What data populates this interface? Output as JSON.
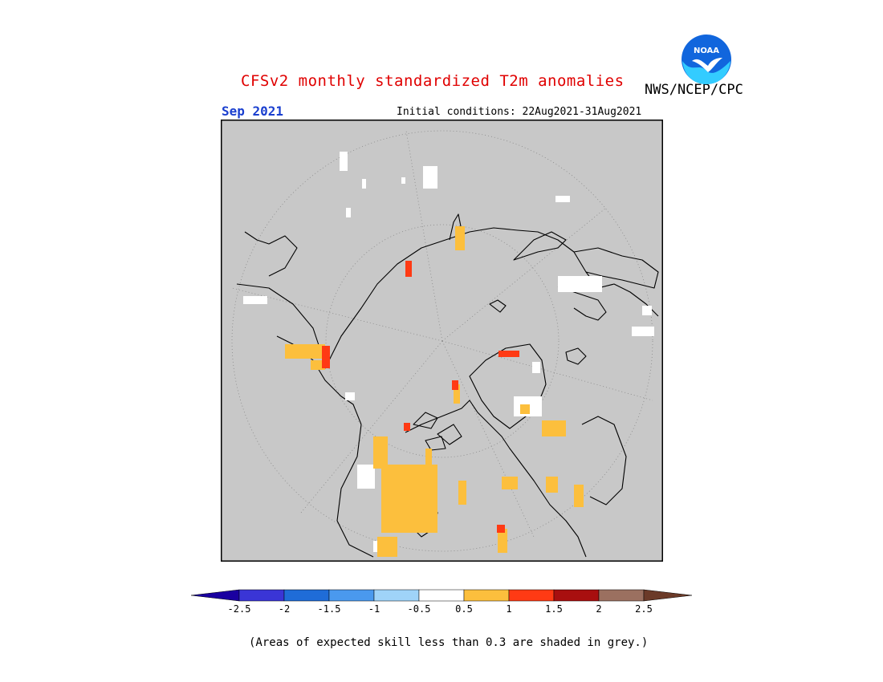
{
  "header": {
    "title": "CFSv2 monthly standardized T2m anomalies",
    "agency": "NWS/NCEP/CPC",
    "period": "Sep 2021",
    "initial_conditions": "Initial conditions: 22Aug2021-31Aug2021"
  },
  "logo": {
    "text": "NOAA",
    "icon": "noaa-logo",
    "colors": {
      "sky": "#1166dd",
      "wave": "#33ccff",
      "gull": "#ffffff"
    }
  },
  "map": {
    "projection": "north polar stereographic",
    "background_color": "#c8c8c8",
    "coastline_color": "#000000"
  },
  "legend": {
    "ticks": [
      "-2.5",
      "-2",
      "-1.5",
      "-1",
      "-0.5",
      "0.5",
      "1",
      "1.5",
      "2",
      "2.5"
    ],
    "colors": [
      "#1a00a0",
      "#3a35d6",
      "#1f6cd8",
      "#4a99ee",
      "#9fd3f8",
      "#ffffff",
      "#fcbf3d",
      "#ff3a14",
      "#a80f0f",
      "#9b7060",
      "#6b3a28"
    ],
    "note": "(Areas of expected skill less than 0.3 are shaded in grey.)"
  }
}
